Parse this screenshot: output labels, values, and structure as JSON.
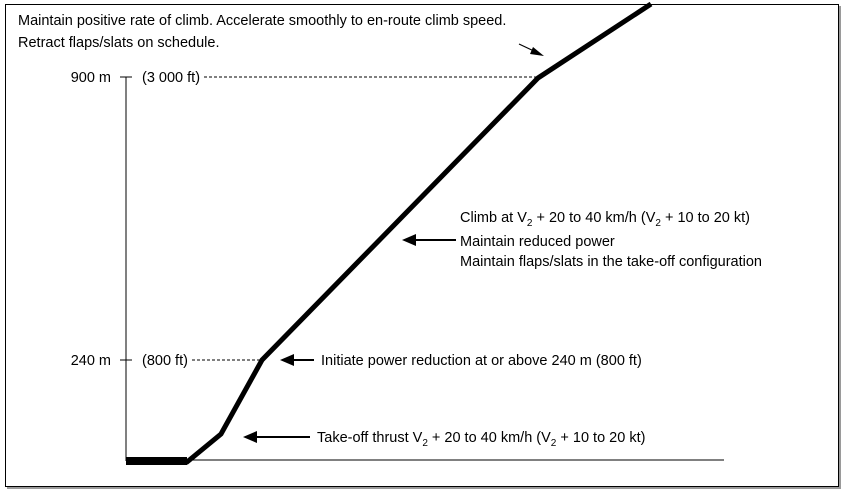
{
  "top_note": {
    "line1": "Maintain positive rate of climb. Accelerate smoothly to en-route climb speed.",
    "line2": "Retract flaps/slats on schedule."
  },
  "levels": {
    "high": {
      "metric": "900 m",
      "feet": "(3 000 ft)"
    },
    "low": {
      "metric": "240 m",
      "feet": "(800 ft)"
    }
  },
  "climb_note": {
    "line1": {
      "pre": "Climb at V",
      "sub1": "2",
      "mid": " + 20 to 40 km/h (V",
      "sub2": "2",
      "post": " + 10 to 20 kt)"
    },
    "line2": "Maintain reduced power",
    "line3": "Maintain flaps/slats in the take-off configuration"
  },
  "reduction_note": "Initiate power reduction at or above 240 m (800 ft)",
  "takeoff_note": {
    "pre": "Take-off thrust V",
    "sub1": "2",
    "mid": " + 20 to 40 km/h (V",
    "sub2": "2",
    "post": " + 10 to 20 kt)"
  }
}
